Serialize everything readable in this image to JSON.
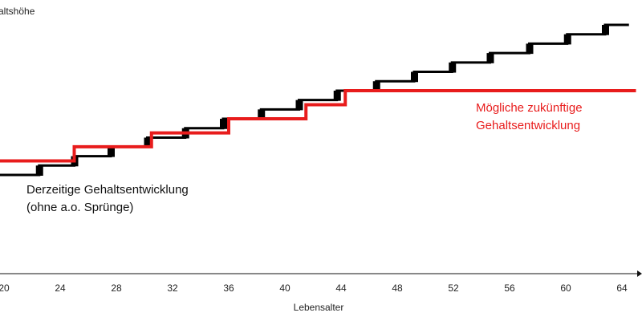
{
  "chart_data": {
    "type": "line",
    "ylabel": "altshöhe",
    "xlabel": "Lebensalter",
    "xlim": [
      20,
      65
    ],
    "x_ticks": [
      20,
      24,
      28,
      32,
      36,
      40,
      44,
      48,
      52,
      56,
      60,
      64
    ],
    "ylim": [
      0,
      100
    ],
    "series": [
      {
        "color": "#000000",
        "steps": [
          {
            "x": 20.0,
            "y": 5.6
          },
          {
            "x": 22.5,
            "y": 9.6
          },
          {
            "x": 25.0,
            "y": 13.6
          },
          {
            "x": 27.6,
            "y": 17.6
          },
          {
            "x": 30.2,
            "y": 21.5
          },
          {
            "x": 32.9,
            "y": 25.5
          },
          {
            "x": 35.6,
            "y": 29.5
          },
          {
            "x": 38.3,
            "y": 33.5
          },
          {
            "x": 41.0,
            "y": 37.5
          },
          {
            "x": 43.7,
            "y": 41.5
          },
          {
            "x": 46.5,
            "y": 45.5
          },
          {
            "x": 49.2,
            "y": 49.5
          },
          {
            "x": 51.9,
            "y": 53.5
          },
          {
            "x": 54.6,
            "y": 57.5
          },
          {
            "x": 57.4,
            "y": 61.5
          },
          {
            "x": 60.1,
            "y": 65.5
          },
          {
            "x": 62.8,
            "y": 69.5
          },
          {
            "x": 64.5,
            "y": 69.5
          }
        ]
      },
      {
        "color": "#e81c1c",
        "steps": [
          {
            "x": 20.0,
            "y": 11.6
          },
          {
            "x": 25.0,
            "y": 17.6
          },
          {
            "x": 30.5,
            "y": 23.5
          },
          {
            "x": 36.0,
            "y": 29.5
          },
          {
            "x": 41.5,
            "y": 35.5
          },
          {
            "x": 44.3,
            "y": 41.5
          },
          {
            "x": 65.0,
            "y": 41.5
          }
        ]
      }
    ],
    "annotations": [
      {
        "lines": [
          "Derzeitige Gehaltsentwicklung",
          "(ohne a.o. Sprünge)"
        ],
        "color": "#111111"
      },
      {
        "lines": [
          "Mögliche zukünftige",
          "Gehaltsentwicklung"
        ],
        "color": "#e81c1c"
      }
    ]
  }
}
